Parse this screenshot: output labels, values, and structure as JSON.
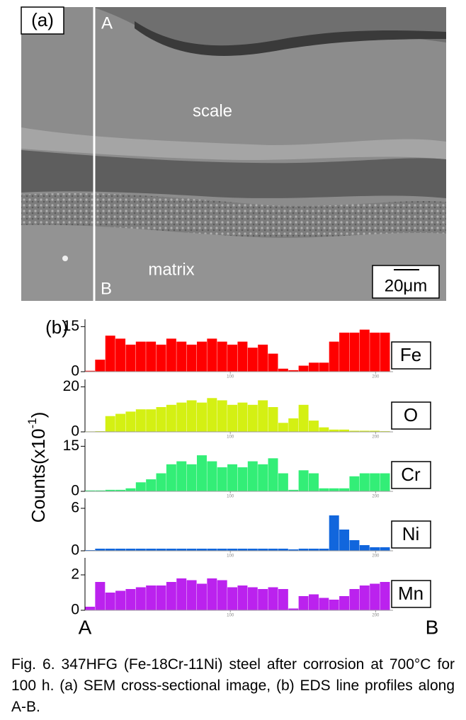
{
  "panel_a": {
    "label": "(a)",
    "point_a": "A",
    "point_b": "B",
    "scale": "scale",
    "matrix": "matrix",
    "scale_bar": "20μm"
  },
  "panel_b": {
    "label": "(b)",
    "ylabel": "Counts(x10",
    "ylabel_exponent": "-1",
    "ylabel_close": ")",
    "start": "A",
    "end": "B"
  },
  "chart_data": [
    {
      "type": "histogram",
      "name": "Fe",
      "color": "#ff0000",
      "xlim": [
        0,
        212
      ],
      "xticks": [
        100,
        200
      ],
      "ylim": [
        0,
        16.5
      ],
      "yticks": [
        0,
        15
      ],
      "bins": [
        0,
        7,
        14,
        21,
        28,
        35,
        42,
        49,
        56,
        63,
        70,
        77,
        84,
        91,
        98,
        105,
        112,
        119,
        126,
        133,
        140,
        147,
        154,
        161,
        168,
        175,
        182,
        189,
        196,
        203,
        210
      ],
      "values": [
        0.3,
        4,
        12,
        11,
        9,
        10,
        10,
        9,
        11,
        10,
        9,
        10,
        11,
        10,
        9,
        10,
        8,
        9,
        6,
        1,
        0.5,
        2,
        3,
        3,
        10,
        13,
        13,
        14,
        13,
        13
      ]
    },
    {
      "type": "histogram",
      "name": "O",
      "color": "#d4f013",
      "xlim": [
        0,
        212
      ],
      "xticks": [
        100,
        200
      ],
      "ylim": [
        0,
        22
      ],
      "yticks": [
        0,
        20
      ],
      "bins": [
        0,
        7,
        14,
        21,
        28,
        35,
        42,
        49,
        56,
        63,
        70,
        77,
        84,
        91,
        98,
        105,
        112,
        119,
        126,
        133,
        140,
        147,
        154,
        161,
        168,
        175,
        182,
        189,
        196,
        203,
        210
      ],
      "values": [
        0.2,
        0.3,
        7,
        8,
        9,
        10,
        10,
        11,
        12,
        13,
        14,
        13,
        15,
        14,
        12,
        13,
        12,
        14,
        11,
        4,
        6,
        12,
        5,
        2,
        1,
        1,
        0.5,
        0.5,
        0.5,
        0.3
      ]
    },
    {
      "type": "histogram",
      "name": "Cr",
      "color": "#33ee77",
      "xlim": [
        0,
        212
      ],
      "xticks": [
        100,
        200
      ],
      "ylim": [
        0,
        16.5
      ],
      "yticks": [
        0,
        15
      ],
      "bins": [
        0,
        7,
        14,
        21,
        28,
        35,
        42,
        49,
        56,
        63,
        70,
        77,
        84,
        91,
        98,
        105,
        112,
        119,
        126,
        133,
        140,
        147,
        154,
        161,
        168,
        175,
        182,
        189,
        196,
        203,
        210
      ],
      "values": [
        0.3,
        0.3,
        0.5,
        0.5,
        1,
        3,
        4,
        6,
        9,
        10,
        9,
        12,
        10,
        8,
        9,
        8,
        10,
        9,
        11,
        6,
        0.5,
        7,
        6,
        1,
        1,
        1,
        5,
        6,
        6,
        6
      ]
    },
    {
      "type": "histogram",
      "name": "Ni",
      "color": "#1166dd",
      "xlim": [
        0,
        212
      ],
      "xticks": [
        100,
        200
      ],
      "ylim": [
        0,
        7
      ],
      "yticks": [
        0,
        6
      ],
      "bins": [
        0,
        7,
        14,
        21,
        28,
        35,
        42,
        49,
        56,
        63,
        70,
        77,
        84,
        91,
        98,
        105,
        112,
        119,
        126,
        133,
        140,
        147,
        154,
        161,
        168,
        175,
        182,
        189,
        196,
        203,
        210
      ],
      "values": [
        0.1,
        0.3,
        0.3,
        0.3,
        0.3,
        0.3,
        0.3,
        0.3,
        0.3,
        0.3,
        0.3,
        0.3,
        0.3,
        0.3,
        0.3,
        0.3,
        0.3,
        0.3,
        0.3,
        0.3,
        0.2,
        0.3,
        0.3,
        0.3,
        5,
        3,
        1.5,
        0.8,
        0.5,
        0.5
      ]
    },
    {
      "type": "histogram",
      "name": "Mn",
      "color": "#bb22ee",
      "xlim": [
        0,
        212
      ],
      "xticks": [
        100,
        200
      ],
      "ylim": [
        0,
        2.8
      ],
      "yticks": [
        0,
        2
      ],
      "bins": [
        0,
        7,
        14,
        21,
        28,
        35,
        42,
        49,
        56,
        63,
        70,
        77,
        84,
        91,
        98,
        105,
        112,
        119,
        126,
        133,
        140,
        147,
        154,
        161,
        168,
        175,
        182,
        189,
        196,
        203,
        210
      ],
      "values": [
        0.2,
        1.6,
        1.0,
        1.1,
        1.2,
        1.3,
        1.4,
        1.4,
        1.6,
        1.8,
        1.7,
        1.5,
        1.8,
        1.7,
        1.3,
        1.4,
        1.3,
        1.2,
        1.3,
        1.2,
        0.1,
        0.8,
        0.9,
        0.7,
        0.6,
        0.8,
        1.2,
        1.4,
        1.5,
        1.6
      ]
    }
  ],
  "caption": "Fig. 6. 347HFG (Fe-18Cr-11Ni) steel after corrosion at 700°C for 100 h. (a) SEM cross-sectional image, (b) EDS line profiles along A-B."
}
